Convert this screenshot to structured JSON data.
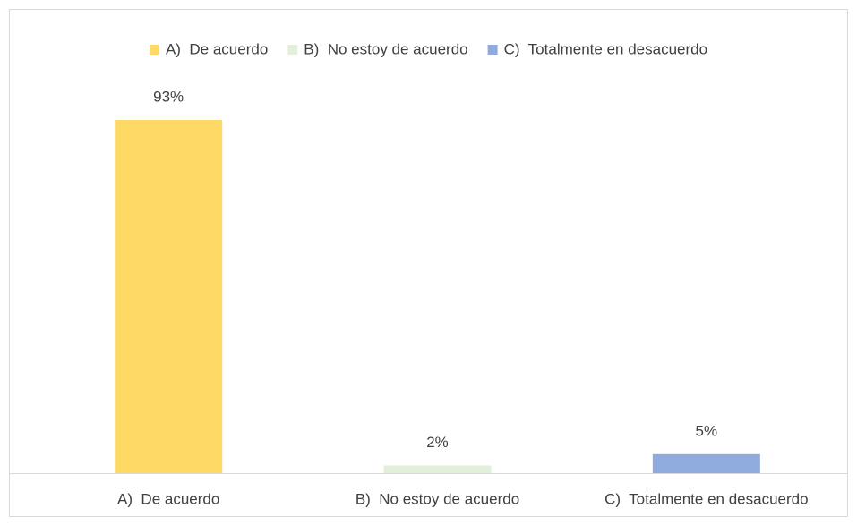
{
  "chart_data": {
    "type": "bar",
    "categories": [
      "A)  De acuerdo",
      "B)  No estoy de acuerdo",
      "C)  Totalmente en desacuerdo"
    ],
    "values": [
      93,
      2,
      5
    ],
    "value_labels": [
      "93%",
      "2%",
      "5%"
    ],
    "colors": [
      "#ffd966",
      "#e2efda",
      "#8faadc"
    ],
    "legend": "top"
  }
}
